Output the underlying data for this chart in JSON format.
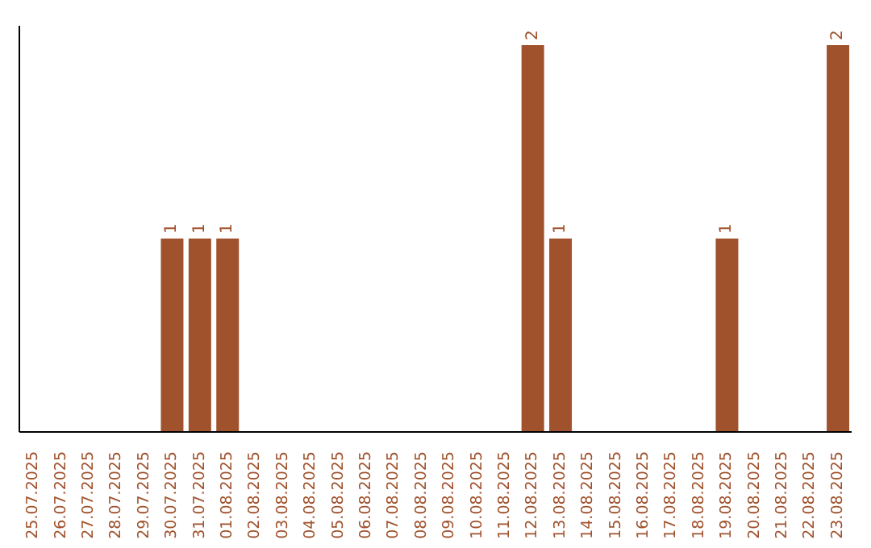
{
  "chart_data": {
    "type": "bar",
    "categories": [
      "25.07.2025",
      "26.07.2025",
      "27.07.2025",
      "28.07.2025",
      "29.07.2025",
      "30.07.2025",
      "31.07.2025",
      "01.08.2025",
      "02.08.2025",
      "03.08.2025",
      "04.08.2025",
      "05.08.2025",
      "06.08.2025",
      "07.08.2025",
      "08.08.2025",
      "09.08.2025",
      "10.08.2025",
      "11.08.2025",
      "12.08.2025",
      "13.08.2025",
      "14.08.2025",
      "15.08.2025",
      "16.08.2025",
      "17.08.2025",
      "18.08.2025",
      "19.08.2025",
      "20.08.2025",
      "21.08.2025",
      "22.08.2025",
      "23.08.2025"
    ],
    "values": [
      0,
      0,
      0,
      0,
      0,
      1,
      1,
      1,
      0,
      0,
      0,
      0,
      0,
      0,
      0,
      0,
      0,
      0,
      2,
      1,
      0,
      0,
      0,
      0,
      0,
      1,
      0,
      0,
      0,
      2
    ],
    "value_labels": [
      null,
      null,
      null,
      null,
      null,
      "1",
      "1",
      "1",
      null,
      null,
      null,
      null,
      null,
      null,
      null,
      null,
      null,
      null,
      "2",
      "1",
      null,
      null,
      null,
      null,
      null,
      "1",
      null,
      null,
      null,
      "2"
    ],
    "color": "#a0522d",
    "tick_labels": "x"
  }
}
